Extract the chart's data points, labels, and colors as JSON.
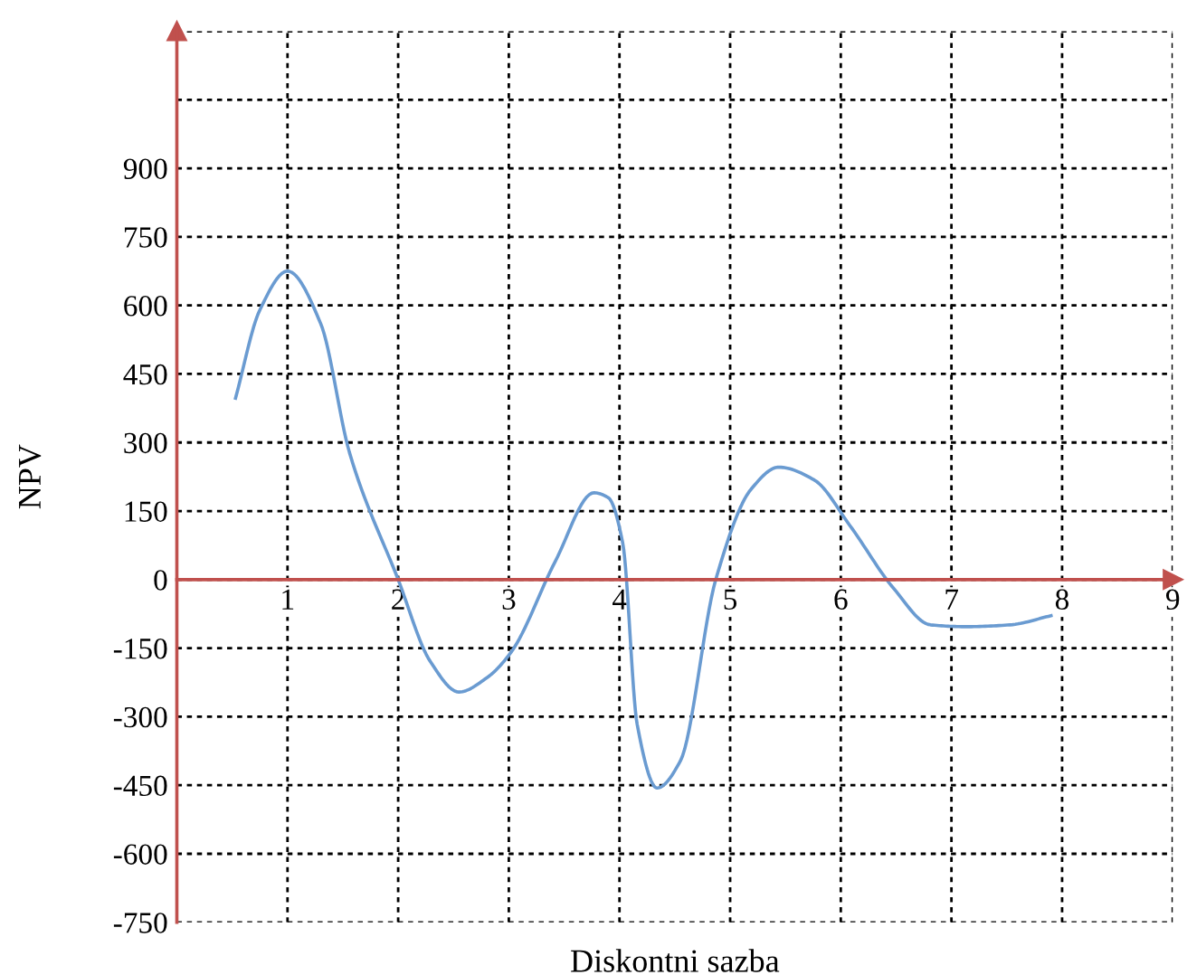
{
  "chart_data": {
    "type": "line",
    "xlabel": "Diskontni sazba",
    "ylabel": "NPV",
    "x": [
      0.53,
      0.75,
      1.0,
      1.3,
      1.56,
      2.0,
      2.29,
      2.55,
      2.8,
      3.02,
      3.42,
      3.77,
      3.9,
      4.03,
      4.16,
      4.34,
      4.55,
      4.87,
      5.19,
      5.44,
      5.76,
      6.08,
      6.48,
      6.81,
      7.13,
      7.53,
      7.9
    ],
    "series": [
      {
        "color": "#6a9bd1",
        "values": [
          397,
          590,
          675,
          560,
          278,
          0,
          -179,
          -246,
          -215,
          -159,
          40,
          190,
          179,
          79,
          -317,
          -456,
          -397,
          0,
          198,
          246,
          218,
          119,
          -20,
          -99,
          -103,
          -99,
          -79
        ]
      }
    ],
    "xlim": [
      0,
      9
    ],
    "ylim": [
      -750,
      1200
    ],
    "xticks": [
      1,
      2,
      3,
      4,
      5,
      6,
      7,
      8,
      9
    ],
    "yticks": [
      -750,
      -600,
      -450,
      -300,
      -150,
      0,
      150,
      300,
      450,
      600,
      750,
      900,
      {
        "value": 1050,
        "label": null
      },
      {
        "value": 1200,
        "label": null
      }
    ],
    "grid": true,
    "marker": "none",
    "line_style": "solid",
    "legend": false
  }
}
